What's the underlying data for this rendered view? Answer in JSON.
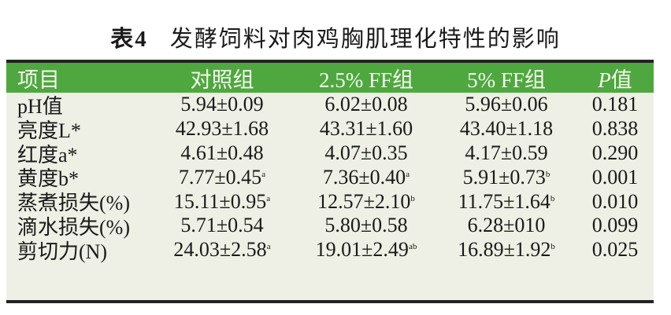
{
  "title": {
    "number": "表4",
    "text": "发酵饲料对肉鸡胸肌理化特性的影响"
  },
  "colors": {
    "header_bg": "#4fa83f",
    "table_bg": "#eef0e5"
  },
  "headers": [
    "项目",
    "对照组",
    "2.5% FF组",
    "5% FF组",
    "值"
  ],
  "header_p": "P",
  "rows": [
    {
      "item": "pH值",
      "c1": "5.94±0.09",
      "s1": "",
      "c2": "6.02±0.08",
      "s2": "",
      "c3": "5.96±0.06",
      "s3": "",
      "p": "0.181"
    },
    {
      "item": "亮度L*",
      "c1": "42.93±1.68",
      "s1": "",
      "c2": "43.31±1.60",
      "s2": "",
      "c3": "43.40±1.18",
      "s3": "",
      "p": "0.838"
    },
    {
      "item": "红度a*",
      "c1": "4.61±0.48",
      "s1": "",
      "c2": "4.07±0.35",
      "s2": "",
      "c3": "4.17±0.59",
      "s3": "",
      "p": "0.290"
    },
    {
      "item": "黄度b*",
      "c1": "7.77±0.45",
      "s1": "a",
      "c2": "7.36±0.40",
      "s2": "a",
      "c3": "5.91±0.73",
      "s3": "b",
      "p": "0.001"
    },
    {
      "item": "蒸煮损失(%)",
      "c1": "15.11±0.95",
      "s1": "a",
      "c2": "12.57±2.10",
      "s2": "b",
      "c3": "11.75±1.64",
      "s3": "b",
      "p": "0.010"
    },
    {
      "item": "滴水损失(%)",
      "c1": "5.71±0.54",
      "s1": "",
      "c2": "5.80±0.58",
      "s2": "",
      "c3": "6.28±010",
      "s3": "",
      "p": "0.099"
    },
    {
      "item": "剪切力(N)",
      "c1": "24.03±2.58",
      "s1": "a",
      "c2": "19.01±2.49",
      "s2": "ab",
      "c3": "16.89±1.92",
      "s3": "b",
      "p": "0.025"
    }
  ]
}
